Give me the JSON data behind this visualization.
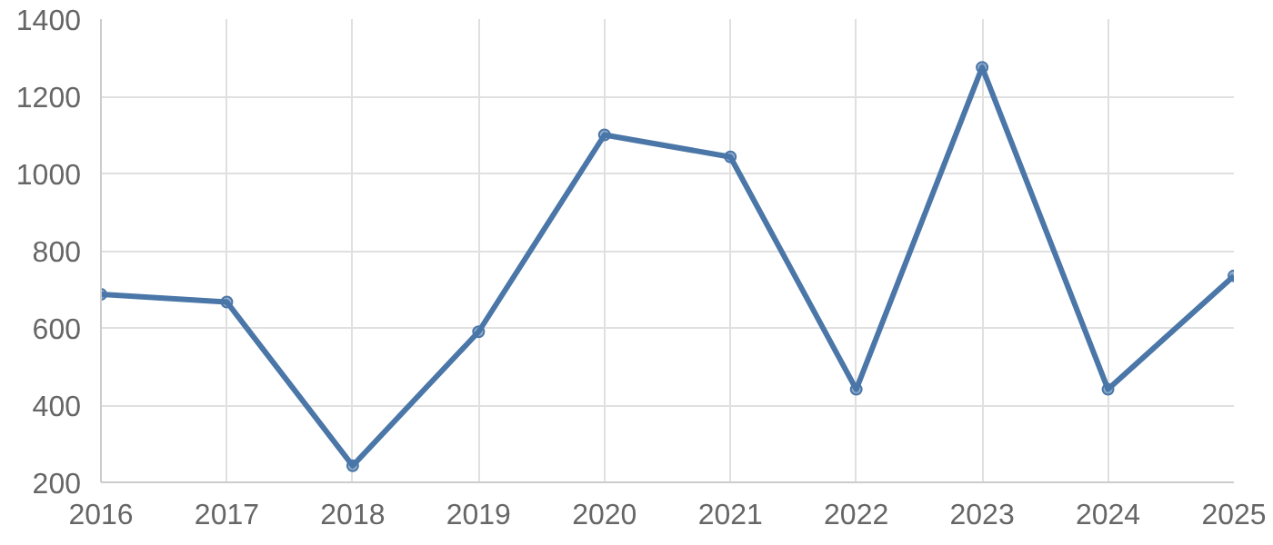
{
  "chart_data": {
    "type": "line",
    "x": [
      2016,
      2017,
      2018,
      2019,
      2020,
      2021,
      2022,
      2023,
      2024,
      2025
    ],
    "series": [
      {
        "color": "#4a76a8",
        "values": [
          687,
          667,
          243,
          590,
          1100,
          1043,
          441,
          1275,
          441,
          735
        ]
      }
    ],
    "xlim": [
      2016,
      2025
    ],
    "xticks": [
      2016,
      2017,
      2018,
      2019,
      2020,
      2021,
      2022,
      2023,
      2024,
      2025
    ],
    "ylim": [
      200,
      1400
    ],
    "yticks": [
      200,
      400,
      600,
      800,
      1000,
      1200,
      1400
    ],
    "grid": true,
    "marker": "circle",
    "line_style": "solid"
  }
}
